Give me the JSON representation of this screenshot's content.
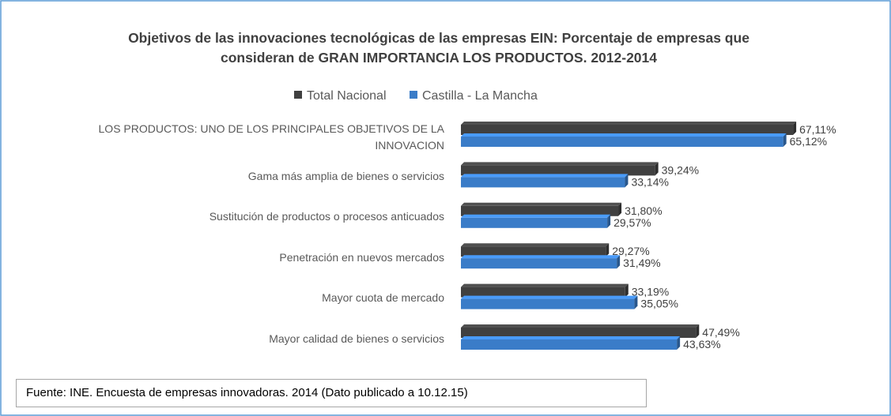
{
  "chart_data": {
    "type": "bar",
    "orientation": "horizontal",
    "title": "Objetivos de las innovaciones tecnológicas de las empresas EIN: Porcentaje de empresas que consideran de GRAN IMPORTANCIA LOS PRODUCTOS. 2012-2014",
    "categories": [
      "LOS PRODUCTOS: UNO DE LOS PRINCIPALES OBJETIVOS DE LA INNOVACION",
      "Gama más amplia de bienes o servicios",
      "Sustitución de productos o procesos anticuados",
      "Penetración en nuevos mercados",
      "Mayor cuota de mercado",
      "Mayor calidad de bienes o servicios"
    ],
    "series": [
      {
        "name": "Total Nacional",
        "color": "#404040",
        "values": [
          67.11,
          39.24,
          31.8,
          29.27,
          33.19,
          47.49
        ],
        "value_labels": [
          "67,11%",
          "39,24%",
          "31,80%",
          "29,27%",
          "33,19%",
          "47,49%"
        ]
      },
      {
        "name": "Castilla - La Mancha",
        "color": "#3a7cc8",
        "values": [
          65.12,
          33.14,
          29.57,
          31.49,
          35.05,
          43.63
        ],
        "value_labels": [
          "65,12%",
          "33,14%",
          "29,57%",
          "31,49%",
          "35,05%",
          "43,63%"
        ]
      }
    ],
    "legend": "top",
    "footnote": "Fuente: INE. Encuesta de empresas innovadoras. 2014  (Dato publicado a 10.12.15)"
  }
}
